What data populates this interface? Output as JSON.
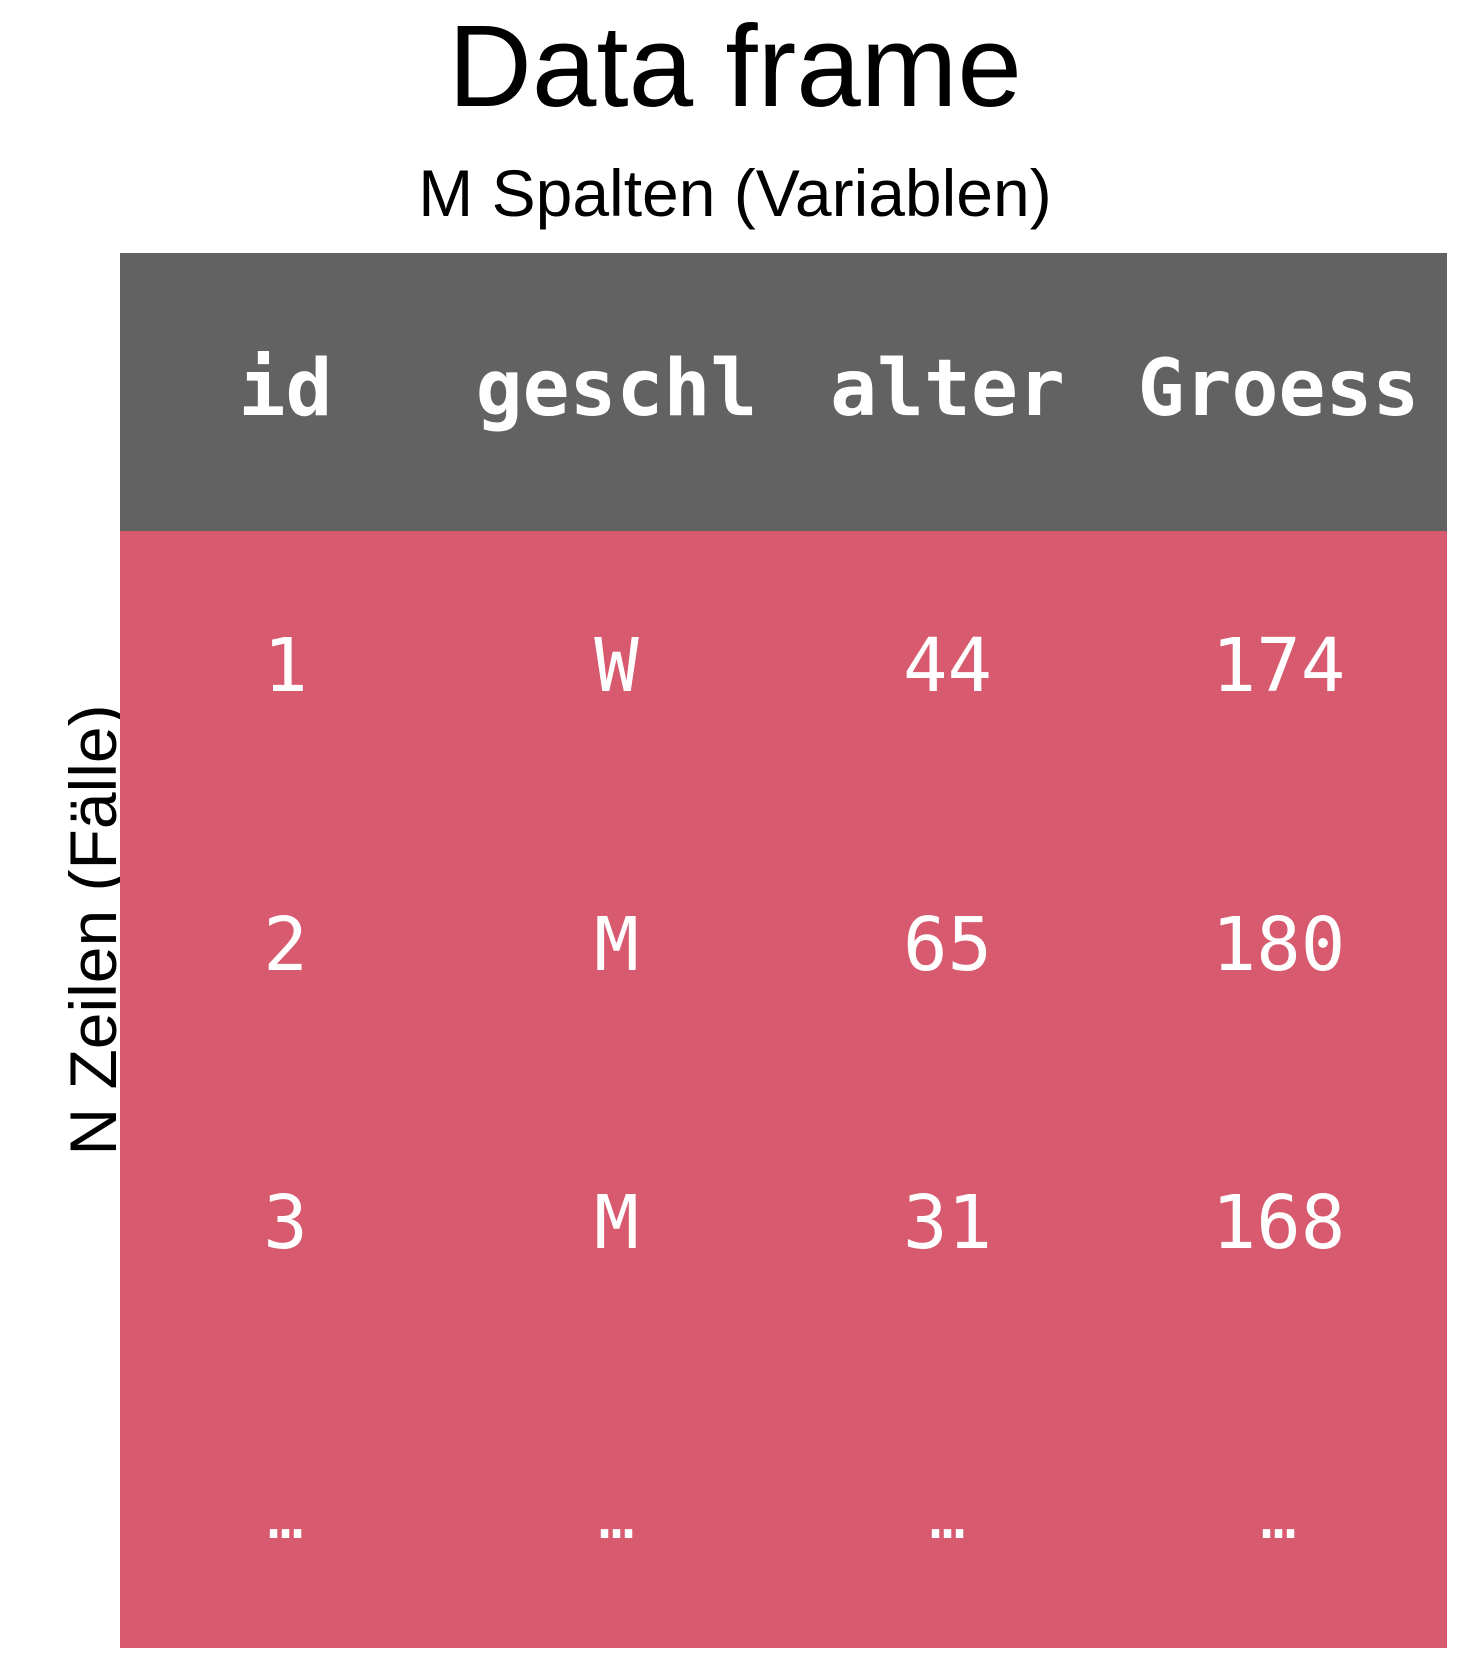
{
  "title": "Data frame",
  "columns_label": "M Spalten (Variablen)",
  "rows_label": "N Zeilen (Fälle)",
  "colors": {
    "header_bg": "#626262",
    "body_bg": "#d85a6e",
    "cell_text": "#ffffff"
  },
  "table": {
    "headers": [
      "id",
      "geschl",
      "alter",
      "Groess"
    ],
    "rows": [
      [
        "1",
        "W",
        "44",
        "174"
      ],
      [
        "2",
        "M",
        "65",
        "180"
      ],
      [
        "3",
        "M",
        "31",
        "168"
      ],
      [
        "…",
        "…",
        "…",
        "…"
      ]
    ]
  }
}
